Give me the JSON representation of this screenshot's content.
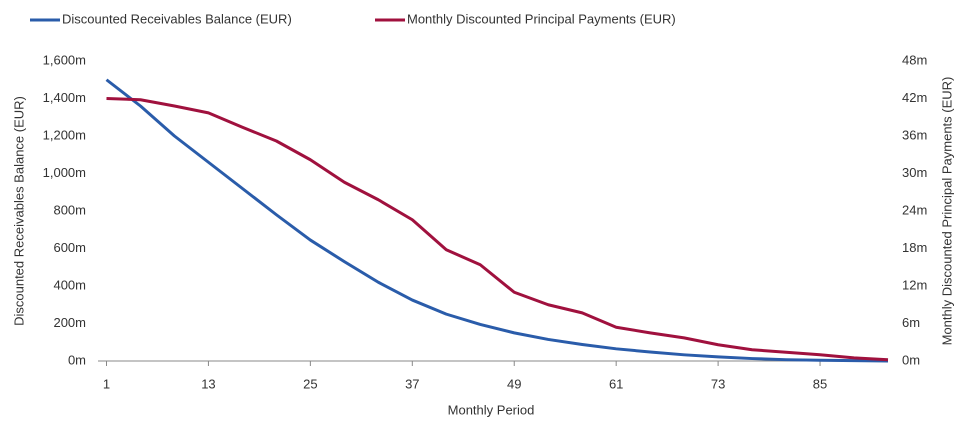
{
  "chart_data": {
    "type": "line",
    "x": [
      1,
      5,
      9,
      13,
      17,
      21,
      25,
      29,
      33,
      37,
      41,
      45,
      49,
      53,
      57,
      61,
      65,
      69,
      73,
      77,
      81,
      85,
      89,
      93
    ],
    "series": [
      {
        "name": "Discounted Receivables Balance (EUR)",
        "color": "#2a5caa",
        "axis": "y",
        "values": [
          1500,
          1360,
          1200,
          1060,
          920,
          780,
          645,
          530,
          420,
          325,
          250,
          195,
          150,
          115,
          88,
          65,
          48,
          33,
          22,
          13,
          7,
          4,
          2,
          0
        ]
      },
      {
        "name": "Monthly Discounted Principal Payments (EUR)",
        "color": "#a0113e",
        "axis": "y2",
        "values": [
          42,
          41.8,
          40.8,
          39.7,
          37.4,
          35.2,
          32.2,
          28.6,
          25.8,
          22.6,
          17.8,
          15.4,
          11,
          9,
          7.7,
          5.4,
          4.5,
          3.7,
          2.6,
          1.8,
          1.4,
          1.0,
          0.5,
          0.2
        ]
      }
    ],
    "xlabel": "Monthly Period",
    "ylabel": "Discounted Receivables Balance (EUR)",
    "y2label": "Monthly Discounted Principal Payments (EUR)",
    "xlim": [
      0,
      93
    ],
    "xticks": [
      1,
      13,
      25,
      37,
      49,
      61,
      73,
      85
    ],
    "ylim": [
      0,
      1600
    ],
    "yticks": [
      {
        "value": 0,
        "label": "0m"
      },
      {
        "value": 200,
        "label": "200m"
      },
      {
        "value": 400,
        "label": "400m"
      },
      {
        "value": 600,
        "label": "600m"
      },
      {
        "value": 800,
        "label": "800m"
      },
      {
        "value": 1000,
        "label": "1,000m"
      },
      {
        "value": 1200,
        "label": "1,200m"
      },
      {
        "value": 1400,
        "label": "1,400m"
      },
      {
        "value": 1600,
        "label": "1,600m"
      }
    ],
    "y2lim": [
      0,
      48
    ],
    "y2ticks": [
      {
        "value": 0,
        "label": "0m"
      },
      {
        "value": 6,
        "label": "6m"
      },
      {
        "value": 12,
        "label": "12m"
      },
      {
        "value": 18,
        "label": "18m"
      },
      {
        "value": 24,
        "label": "24m"
      },
      {
        "value": 30,
        "label": "30m"
      },
      {
        "value": 36,
        "label": "36m"
      },
      {
        "value": 42,
        "label": "42m"
      },
      {
        "value": 48,
        "label": "48m"
      }
    ],
    "legend": "top-left"
  }
}
